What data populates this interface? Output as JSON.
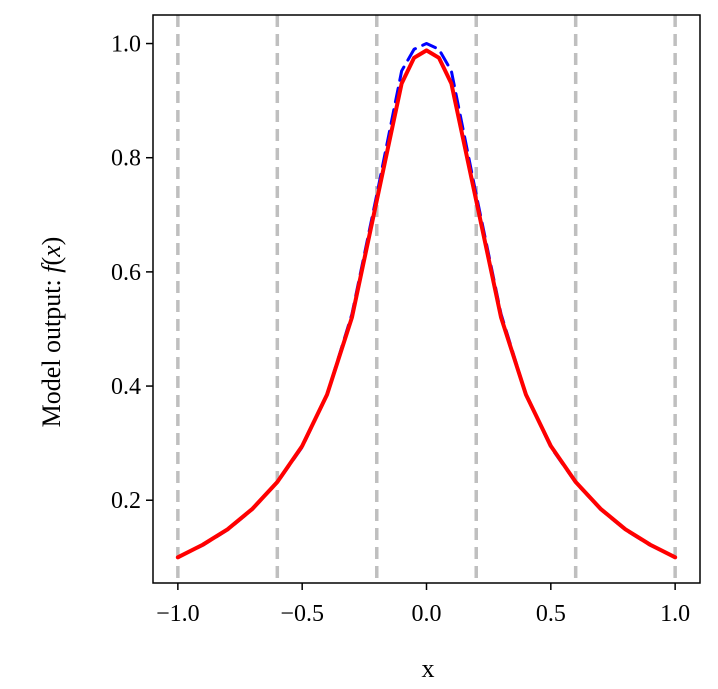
{
  "chart_data": {
    "type": "line",
    "xlabel": "x",
    "ylabel_prefix": "Model output: ",
    "ylabel_f": "f",
    "ylabel_open": "(",
    "ylabel_x": "x",
    "ylabel_close": ")",
    "xlim": [
      -1.1,
      1.1
    ],
    "ylim": [
      0.055,
      1.05
    ],
    "x_ticks": [
      -1.0,
      -0.5,
      0.0,
      0.5,
      1.0
    ],
    "x_tick_labels": [
      "−1.0",
      "−0.5",
      "0.0",
      "0.5",
      "1.0"
    ],
    "y_ticks": [
      0.2,
      0.4,
      0.6,
      0.8,
      1.0
    ],
    "y_tick_labels": [
      "0.2",
      "0.4",
      "0.6",
      "0.8",
      "1.0"
    ],
    "vertical_lines": {
      "x": [
        -1.0,
        -0.6,
        -0.2,
        0.2,
        0.6,
        1.0
      ],
      "color": "#bfbfbf",
      "style": "dashed"
    },
    "series": [
      {
        "style": "dashed",
        "color": "#0000ff",
        "x": [
          -1.0,
          -0.9,
          -0.8,
          -0.7,
          -0.6,
          -0.5,
          -0.4,
          -0.3,
          -0.2,
          -0.1,
          -0.05,
          0.0,
          0.05,
          0.1,
          0.2,
          0.3,
          0.4,
          0.5,
          0.6,
          0.7,
          0.8,
          0.9,
          1.0
        ],
        "y": [
          0.1,
          0.121,
          0.148,
          0.184,
          0.231,
          0.293,
          0.385,
          0.526,
          0.735,
          0.952,
          0.99,
          1.0,
          0.99,
          0.952,
          0.735,
          0.526,
          0.385,
          0.293,
          0.231,
          0.184,
          0.148,
          0.121,
          0.1
        ]
      },
      {
        "style": "solid",
        "color": "#ff0000",
        "x": [
          -1.0,
          -0.9,
          -0.8,
          -0.7,
          -0.6,
          -0.5,
          -0.4,
          -0.3,
          -0.2,
          -0.1,
          -0.05,
          0.0,
          0.05,
          0.1,
          0.2,
          0.3,
          0.4,
          0.5,
          0.6,
          0.7,
          0.8,
          0.9,
          1.0
        ],
        "y": [
          0.1,
          0.122,
          0.149,
          0.185,
          0.232,
          0.295,
          0.385,
          0.52,
          0.725,
          0.93,
          0.975,
          0.988,
          0.975,
          0.93,
          0.725,
          0.52,
          0.385,
          0.295,
          0.232,
          0.185,
          0.149,
          0.122,
          0.1
        ]
      }
    ]
  }
}
